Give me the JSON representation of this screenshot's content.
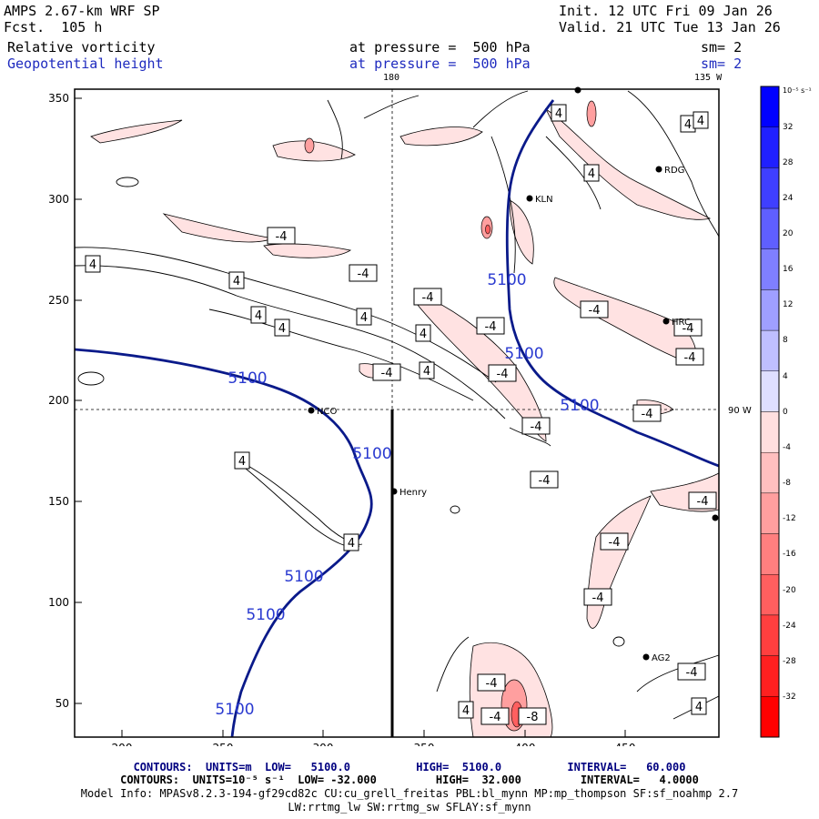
{
  "header": {
    "model": "AMPS 2.67-km WRF SP",
    "forecast": "Fcst.  105 h",
    "init": "Init. 12 UTC Fri 09 Jan 26",
    "valid": "Valid. 21 UTC Tue 13 Jan 26",
    "field1": "Relative vorticity",
    "field2": "Geopotential height",
    "pressure1": "at pressure =  500 hPa",
    "pressure2": "at pressure =  500 hPa",
    "sm1": "sm= 2",
    "sm2": "sm= 2"
  },
  "map_labels": {
    "lon_180": "180",
    "lon_135w": "135 W",
    "lat_90w": "90 W"
  },
  "axes": {
    "x_ticks": [
      "200",
      "250",
      "300",
      "350",
      "400",
      "450"
    ],
    "y_ticks": [
      "350",
      "300",
      "250",
      "200",
      "150",
      "100",
      "50"
    ]
  },
  "stations": [
    {
      "name": "NCO"
    },
    {
      "name": "Henry"
    },
    {
      "name": "KLN"
    },
    {
      "name": "RDG"
    },
    {
      "name": "HRC"
    },
    {
      "name": "AG2"
    }
  ],
  "contour_labels": {
    "height": "5100",
    "pos": "4",
    "neg": "-4",
    "neg8": "-8"
  },
  "colorbar": {
    "units": "10⁻⁵ s⁻¹",
    "labels": [
      "32",
      "28",
      "24",
      "20",
      "16",
      "12",
      "8",
      "4",
      "0",
      "-4",
      "-8",
      "-12",
      "-16",
      "-20",
      "-24",
      "-28",
      "-32"
    ],
    "colors": [
      "#0000ff",
      "#2020ff",
      "#3f3fff",
      "#5f5fff",
      "#7f7fff",
      "#9f9fff",
      "#bfbfff",
      "#dfdfff",
      "#ffdfdf",
      "#ffbfbf",
      "#ff9f9f",
      "#ff7f7f",
      "#ff5f5f",
      "#ff3f3f",
      "#ff2020",
      "#ff0000"
    ]
  },
  "footer": {
    "line1_prefix": "CONTOURS:  UNITS=m  LOW=   5100.0          HIGH=  5100.0          INTERVAL=   60.000",
    "line2": "CONTOURS:  UNITS=10⁻⁵ s⁻¹  LOW= -32.000         HIGH=  32.000         INTERVAL=   4.0000",
    "line3": "Model Info: MPASv8.2.3-194-gf29cd82c CU:cu_grell_freitas PBL:bl_mynn MP:mp_thompson SF:sf_noahmp 2.7",
    "line4": "LW:rrtmg_lw SW:rrtmg_sw SFLAY:sf_mynn"
  }
}
